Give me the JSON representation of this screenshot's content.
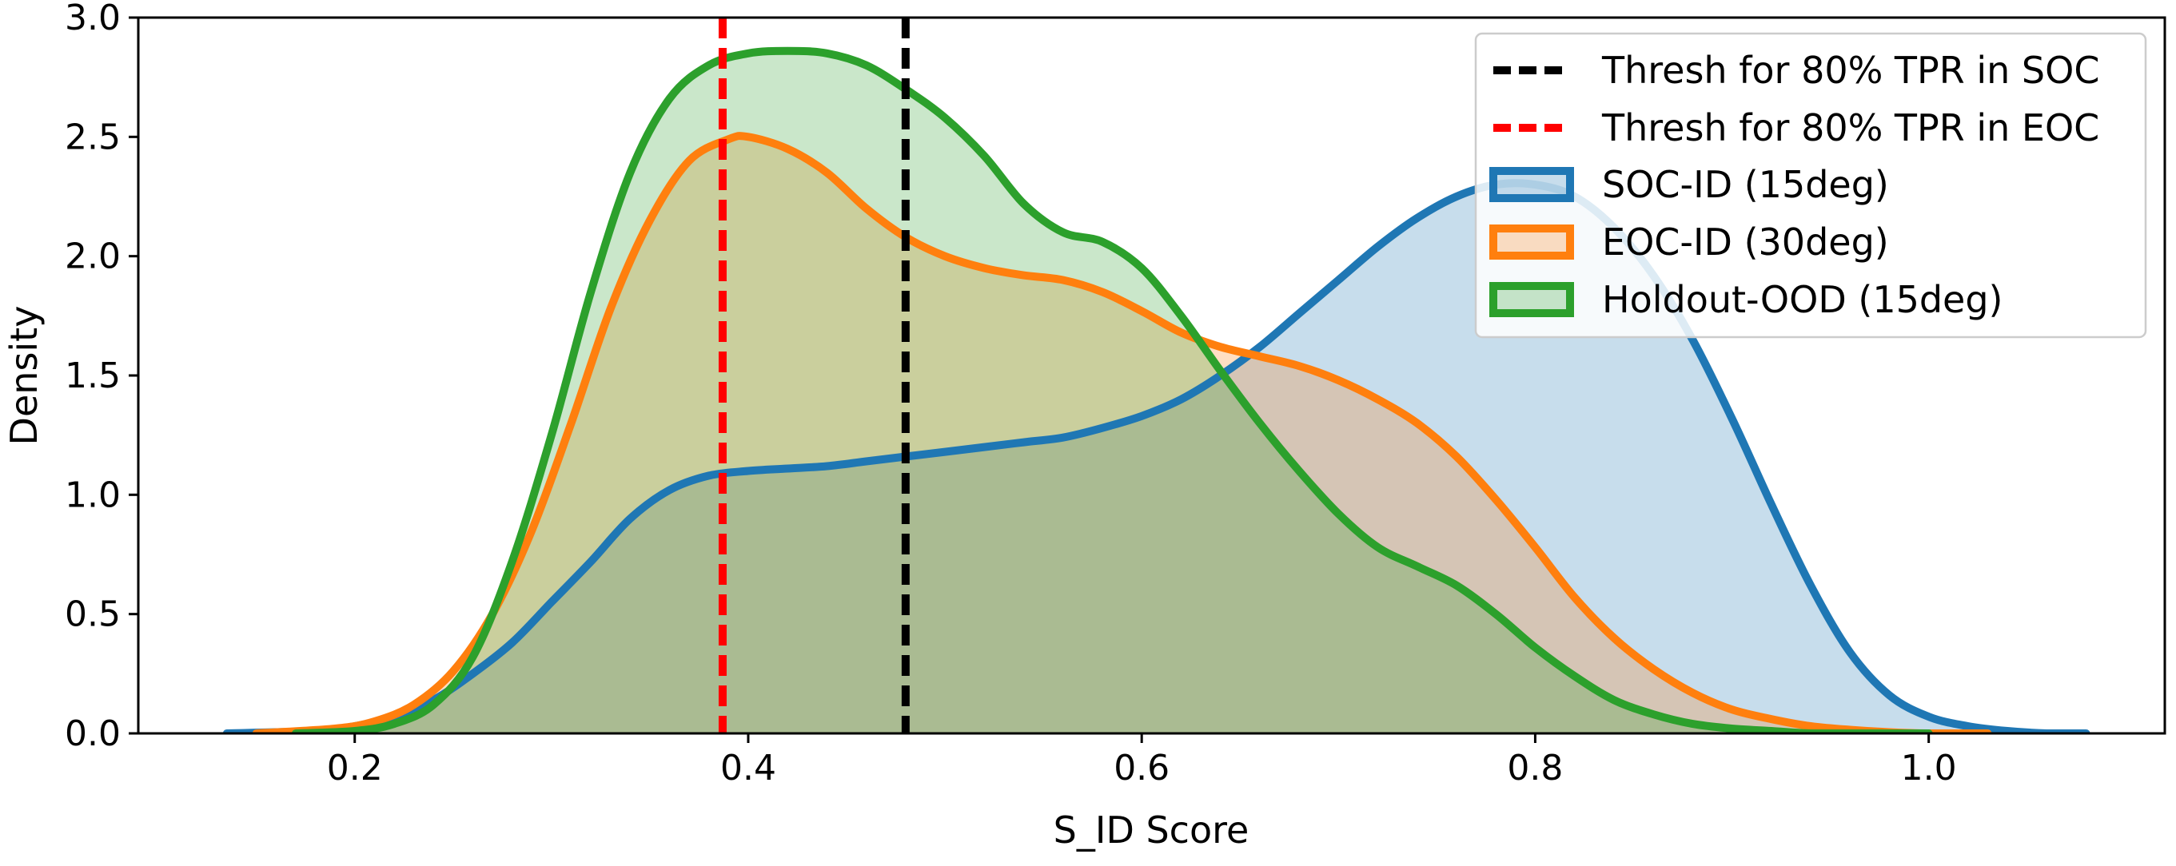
{
  "chart_data": {
    "type": "area",
    "xlabel": "S_ID Score",
    "ylabel": "Density",
    "xlim": [
      0.09,
      1.12
    ],
    "ylim": [
      0.0,
      3.0
    ],
    "xticks": [
      0.2,
      0.4,
      0.6,
      0.8,
      1.0
    ],
    "xtick_labels": [
      "0.2",
      "0.4",
      "0.6",
      "0.8",
      "1.0"
    ],
    "yticks": [
      0.0,
      0.5,
      1.0,
      1.5,
      2.0,
      2.5,
      3.0
    ],
    "ytick_labels": [
      "0.0",
      "0.5",
      "1.0",
      "1.5",
      "2.0",
      "2.5",
      "3.0"
    ],
    "grid": false,
    "legend_position": "upper-right",
    "thresholds": [
      {
        "name": "Thresh for 80% TPR in SOC",
        "x": 0.48,
        "color": "#000000"
      },
      {
        "name": "Thresh for 80% TPR in EOC",
        "x": 0.387,
        "color": "#ff0000"
      }
    ],
    "series": [
      {
        "name": "SOC-ID (15deg)",
        "color": "#1f77b4",
        "x": [
          0.135,
          0.18,
          0.2,
          0.22,
          0.24,
          0.26,
          0.28,
          0.3,
          0.32,
          0.34,
          0.36,
          0.38,
          0.4,
          0.42,
          0.44,
          0.46,
          0.48,
          0.5,
          0.52,
          0.54,
          0.56,
          0.58,
          0.6,
          0.62,
          0.64,
          0.66,
          0.68,
          0.7,
          0.72,
          0.74,
          0.76,
          0.78,
          0.8,
          0.82,
          0.84,
          0.86,
          0.88,
          0.9,
          0.92,
          0.94,
          0.96,
          0.98,
          1.0,
          1.02,
          1.04,
          1.06,
          1.08
        ],
        "y": [
          0.0,
          0.01,
          0.03,
          0.07,
          0.14,
          0.25,
          0.38,
          0.55,
          0.72,
          0.9,
          1.02,
          1.08,
          1.1,
          1.11,
          1.12,
          1.14,
          1.16,
          1.18,
          1.2,
          1.22,
          1.24,
          1.28,
          1.33,
          1.4,
          1.5,
          1.62,
          1.76,
          1.9,
          2.04,
          2.16,
          2.25,
          2.3,
          2.3,
          2.25,
          2.12,
          1.92,
          1.65,
          1.32,
          0.96,
          0.62,
          0.34,
          0.16,
          0.07,
          0.03,
          0.01,
          0.0,
          0.0
        ]
      },
      {
        "name": "EOC-ID (30deg)",
        "color": "#ff7f0e",
        "x": [
          0.15,
          0.19,
          0.21,
          0.23,
          0.25,
          0.27,
          0.29,
          0.31,
          0.33,
          0.35,
          0.37,
          0.39,
          0.4,
          0.42,
          0.44,
          0.46,
          0.48,
          0.5,
          0.52,
          0.54,
          0.56,
          0.58,
          0.6,
          0.62,
          0.64,
          0.66,
          0.68,
          0.7,
          0.72,
          0.74,
          0.76,
          0.78,
          0.8,
          0.82,
          0.84,
          0.86,
          0.88,
          0.9,
          0.92,
          0.94,
          0.96,
          0.98,
          1.0,
          1.03
        ],
        "y": [
          0.0,
          0.02,
          0.05,
          0.12,
          0.26,
          0.5,
          0.85,
          1.3,
          1.78,
          2.15,
          2.4,
          2.49,
          2.5,
          2.45,
          2.35,
          2.2,
          2.08,
          2.0,
          1.95,
          1.92,
          1.9,
          1.85,
          1.77,
          1.68,
          1.62,
          1.58,
          1.54,
          1.48,
          1.4,
          1.3,
          1.16,
          0.98,
          0.78,
          0.57,
          0.4,
          0.27,
          0.17,
          0.1,
          0.06,
          0.03,
          0.015,
          0.005,
          0.0,
          0.0
        ]
      },
      {
        "name": "Holdout-OOD (15deg)",
        "color": "#2ca02c",
        "x": [
          0.17,
          0.2,
          0.22,
          0.24,
          0.26,
          0.28,
          0.3,
          0.32,
          0.34,
          0.36,
          0.38,
          0.4,
          0.42,
          0.44,
          0.46,
          0.48,
          0.5,
          0.52,
          0.54,
          0.56,
          0.58,
          0.6,
          0.62,
          0.64,
          0.66,
          0.68,
          0.7,
          0.72,
          0.74,
          0.76,
          0.78,
          0.8,
          0.82,
          0.84,
          0.86,
          0.88,
          0.9,
          0.92,
          0.94,
          0.96,
          1.0
        ],
        "y": [
          0.0,
          0.01,
          0.04,
          0.12,
          0.32,
          0.72,
          1.25,
          1.85,
          2.35,
          2.66,
          2.8,
          2.85,
          2.86,
          2.85,
          2.8,
          2.7,
          2.58,
          2.42,
          2.22,
          2.1,
          2.06,
          1.95,
          1.75,
          1.52,
          1.3,
          1.1,
          0.92,
          0.78,
          0.7,
          0.62,
          0.5,
          0.36,
          0.24,
          0.14,
          0.08,
          0.04,
          0.02,
          0.01,
          0.0,
          0.0,
          0.0
        ]
      }
    ]
  }
}
